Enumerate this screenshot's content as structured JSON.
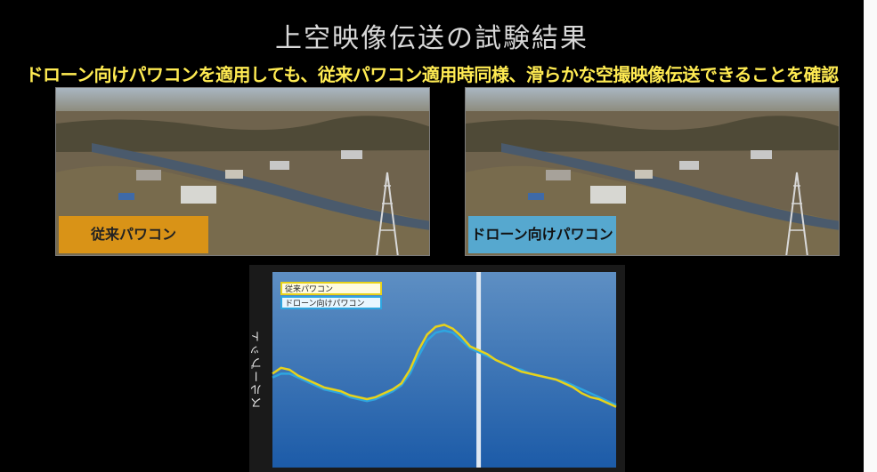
{
  "slide": {
    "title": "上空映像伝送の試験結果",
    "subtitle": "ドローン向けパワコンを適用しても、従来パワコン適用時同様、滑らかな空撮映像伝送できることを確認"
  },
  "photos": {
    "left_label": "従来パワコン",
    "right_label": "ドローン向けパワコン"
  },
  "colors": {
    "subtitle": "#ffeb52",
    "conventional": "#d99317",
    "drone": "#56a8cf",
    "plot_bg_top": "#5e8fc3",
    "plot_bg_bottom": "#1c5ba8"
  },
  "chart_data": {
    "type": "line",
    "title": "",
    "xlabel": "",
    "ylabel": "スループット",
    "grid": false,
    "legend_position": "top-left",
    "x": [
      0,
      1,
      2,
      3,
      4,
      5,
      6,
      7,
      8,
      9,
      10,
      11,
      12,
      13,
      14,
      15,
      16,
      17,
      18,
      19,
      20,
      21,
      22,
      23,
      24,
      25,
      26,
      27,
      28,
      29,
      30,
      31,
      32,
      33,
      34,
      35,
      36,
      37,
      38,
      39,
      40
    ],
    "series": [
      {
        "name": "従来パワコン",
        "color": "#e8d21a",
        "values": [
          48,
          51,
          50,
          47,
          45,
          43,
          41,
          40,
          39,
          37,
          36,
          35,
          36,
          38,
          40,
          43,
          50,
          60,
          68,
          72,
          73,
          71,
          67,
          62,
          60,
          58,
          55,
          53,
          51,
          49,
          48,
          47,
          46,
          45,
          43,
          41,
          38,
          36,
          35,
          33,
          31
        ]
      },
      {
        "name": "ドローン向けパワコン",
        "color": "#2ea6e0",
        "values": [
          46,
          48,
          48,
          46,
          44,
          42,
          40,
          39,
          38,
          36,
          35,
          34,
          35,
          37,
          39,
          42,
          48,
          57,
          65,
          69,
          70,
          69,
          65,
          61,
          59,
          57,
          55,
          53,
          51,
          50,
          48,
          47,
          46,
          45,
          44,
          42,
          40,
          38,
          36,
          34,
          32
        ]
      }
    ],
    "ylim": [
      0,
      100
    ],
    "marker_x": 24
  }
}
